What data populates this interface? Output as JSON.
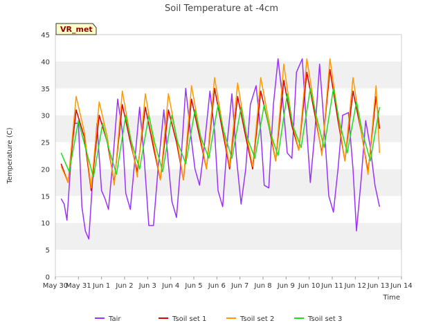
{
  "chart_data": {
    "type": "line",
    "title": "Soil Temperature at -4cm",
    "xlabel": "Time",
    "ylabel": "Temperature (C)",
    "ylim": [
      0,
      45
    ],
    "yticks": [
      0,
      5,
      10,
      15,
      20,
      25,
      30,
      35,
      40,
      45
    ],
    "xlim": [
      0,
      15
    ],
    "xticks": [
      {
        "value": 0,
        "label": "May 30"
      },
      {
        "value": 1,
        "label": "May 31"
      },
      {
        "value": 2,
        "label": "Jun 1"
      },
      {
        "value": 3,
        "label": "Jun 2"
      },
      {
        "value": 4,
        "label": "Jun 3"
      },
      {
        "value": 5,
        "label": "Jun 4"
      },
      {
        "value": 6,
        "label": "Jun 5"
      },
      {
        "value": 7,
        "label": "Jun 6"
      },
      {
        "value": 8,
        "label": "Jun 7"
      },
      {
        "value": 9,
        "label": "Jun 8"
      },
      {
        "value": 10,
        "label": "Jun 9"
      },
      {
        "value": 11,
        "label": "Jun 10"
      },
      {
        "value": 12,
        "label": "Jun 11"
      },
      {
        "value": 13,
        "label": "Jun 12"
      },
      {
        "value": 14,
        "label": "Jun 13"
      },
      {
        "value": 15,
        "label": "Jun 14"
      }
    ],
    "grid": "horizontal bands",
    "legend_position": "bottom",
    "badge": "VR_met",
    "series": [
      {
        "name": "Tair",
        "color": "#9b30ff",
        "x": [
          0.25,
          0.38,
          0.5,
          0.65,
          0.8,
          1.0,
          1.15,
          1.3,
          1.45,
          1.6,
          1.8,
          2.0,
          2.15,
          2.3,
          2.5,
          2.7,
          2.9,
          3.05,
          3.25,
          3.45,
          3.65,
          3.85,
          4.05,
          4.25,
          4.45,
          4.7,
          4.9,
          5.05,
          5.25,
          5.45,
          5.65,
          5.85,
          6.05,
          6.25,
          6.45,
          6.7,
          6.9,
          7.05,
          7.25,
          7.45,
          7.65,
          7.85,
          8.05,
          8.25,
          8.45,
          8.7,
          8.9,
          9.05,
          9.25,
          9.45,
          9.65,
          9.85,
          10.05,
          10.25,
          10.45,
          10.7,
          10.9,
          11.05,
          11.25,
          11.45,
          11.65,
          11.85,
          12.05,
          12.25,
          12.45,
          12.7,
          12.9,
          13.05,
          13.25,
          13.45,
          13.65,
          13.85,
          14.05
        ],
        "y": [
          14.5,
          13.5,
          10.5,
          20,
          28.5,
          28.5,
          13,
          8.5,
          7,
          17,
          28.5,
          16,
          14.5,
          12.5,
          22,
          33,
          27,
          15.5,
          12.5,
          22,
          31.5,
          22,
          9.5,
          9.5,
          20,
          31,
          21,
          14,
          11,
          22,
          35,
          27,
          20,
          17,
          24,
          34.5,
          27,
          16,
          13,
          25,
          34,
          22,
          13.5,
          20,
          32,
          35.5,
          27,
          17,
          16.5,
          32,
          40.5,
          33,
          23,
          22,
          38,
          40.5,
          27,
          17.5,
          27,
          39.5,
          28,
          15,
          12,
          20,
          30,
          30.5,
          20,
          8.5,
          18,
          29,
          24,
          17,
          13
        ]
      },
      {
        "name": "Tsoil set 1",
        "color": "#dd0000",
        "x": [
          0.25,
          0.55,
          0.9,
          1.25,
          1.55,
          1.9,
          2.25,
          2.55,
          2.9,
          3.25,
          3.55,
          3.9,
          4.25,
          4.55,
          4.9,
          5.25,
          5.55,
          5.9,
          6.25,
          6.55,
          6.9,
          7.25,
          7.55,
          7.9,
          8.25,
          8.55,
          8.9,
          9.25,
          9.55,
          9.9,
          10.25,
          10.55,
          10.9,
          11.25,
          11.55,
          11.9,
          12.25,
          12.55,
          12.9,
          13.25,
          13.55,
          13.9,
          14.05
        ],
        "y": [
          21,
          17.5,
          31,
          26,
          16,
          30,
          25,
          17.5,
          32,
          25,
          19.5,
          31.5,
          24,
          18,
          31,
          25,
          18,
          33,
          26,
          20,
          35,
          27,
          20,
          33.5,
          26,
          20,
          34.5,
          28,
          21.5,
          36.5,
          28,
          23.5,
          38,
          30,
          23,
          38.5,
          29,
          21.5,
          34.5,
          27,
          19.5,
          33.5,
          27.5
        ]
      },
      {
        "name": "Tsoil set 2",
        "color": "#ff9900",
        "x": [
          0.25,
          0.55,
          0.9,
          1.25,
          1.55,
          1.9,
          2.25,
          2.55,
          2.9,
          3.25,
          3.55,
          3.9,
          4.25,
          4.55,
          4.9,
          5.25,
          5.55,
          5.9,
          6.25,
          6.55,
          6.9,
          7.25,
          7.55,
          7.9,
          8.25,
          8.55,
          8.9,
          9.25,
          9.55,
          9.9,
          10.25,
          10.55,
          10.9,
          11.25,
          11.55,
          11.9,
          12.25,
          12.55,
          12.9,
          13.25,
          13.55,
          13.9,
          14.05
        ],
        "y": [
          20.5,
          17.5,
          33.5,
          27,
          16.5,
          32.5,
          26,
          17,
          34.5,
          26,
          18.5,
          34,
          25,
          18,
          34,
          26,
          18,
          35.5,
          27,
          20,
          37,
          28,
          20.5,
          36,
          27,
          20.5,
          37,
          29,
          21.5,
          39.5,
          29,
          23.5,
          40.5,
          31,
          22.5,
          40.5,
          30,
          21.5,
          37,
          27,
          19,
          35.5,
          23
        ]
      },
      {
        "name": "Tsoil set 3",
        "color": "#22dd22",
        "x": [
          0.25,
          0.6,
          1.0,
          1.3,
          1.65,
          2.05,
          2.3,
          2.65,
          3.05,
          3.3,
          3.65,
          4.05,
          4.3,
          4.65,
          5.05,
          5.3,
          5.65,
          6.05,
          6.3,
          6.65,
          7.05,
          7.3,
          7.65,
          8.05,
          8.3,
          8.65,
          9.05,
          9.3,
          9.65,
          10.05,
          10.3,
          10.65,
          11.05,
          11.3,
          11.65,
          12.05,
          12.3,
          12.65,
          13.05,
          13.3,
          13.65,
          14.05
        ],
        "y": [
          23,
          19.5,
          29,
          24,
          18.5,
          28.5,
          24,
          19,
          30,
          25,
          20,
          30,
          25,
          19.5,
          30,
          25,
          21,
          31,
          26,
          22,
          32,
          27,
          22,
          31.5,
          26,
          22,
          32,
          27,
          22.5,
          34,
          28,
          24,
          35,
          30,
          24,
          35,
          29,
          23,
          32.5,
          27,
          21.5,
          31.5
        ]
      }
    ]
  }
}
